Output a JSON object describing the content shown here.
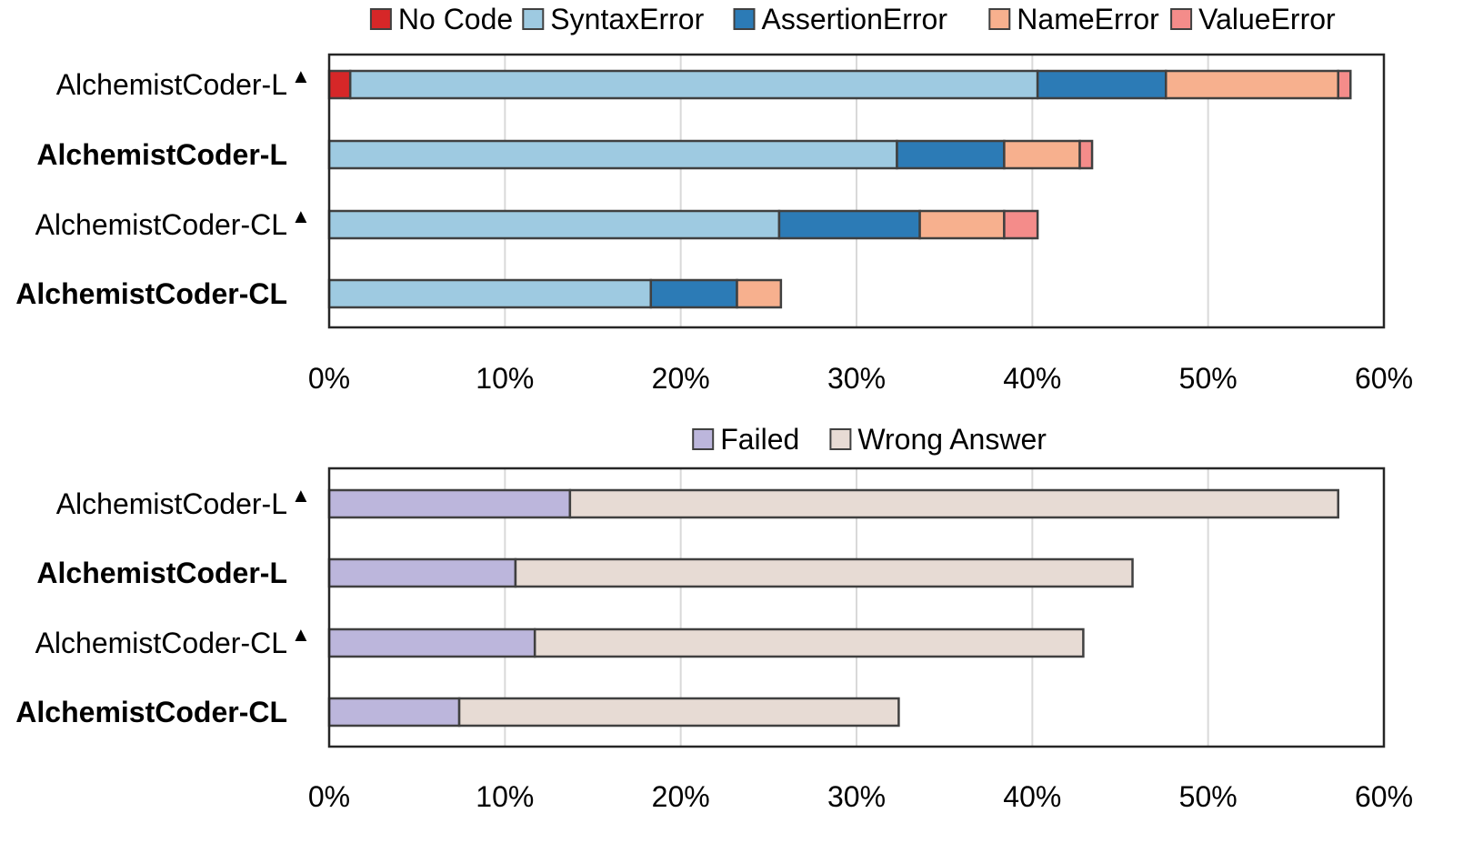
{
  "chart_data": [
    {
      "type": "bar",
      "orientation": "horizontal",
      "stacked": true,
      "categories": [
        "AlchemistCoder-L",
        "AlchemistCoder-L",
        "AlchemistCoder-CL",
        "AlchemistCoder-CL"
      ],
      "category_markers": [
        "▲",
        "",
        "▲",
        ""
      ],
      "category_bold": [
        false,
        true,
        false,
        true
      ],
      "series": [
        {
          "name": "No Code",
          "color": "#d62728",
          "values": [
            1.2,
            0,
            0,
            0
          ]
        },
        {
          "name": "SyntaxError",
          "color": "#9ecae1",
          "values": [
            39.1,
            32.3,
            25.6,
            18.3
          ]
        },
        {
          "name": "AssertionError",
          "color": "#2c7bb6",
          "values": [
            7.3,
            6.1,
            8.0,
            4.9
          ]
        },
        {
          "name": "NameError",
          "color": "#f7b08e",
          "values": [
            9.8,
            4.3,
            4.8,
            2.5
          ]
        },
        {
          "name": "ValueError",
          "color": "#f48c8a",
          "values": [
            0.7,
            0.7,
            1.9,
            0
          ]
        }
      ],
      "xlim": [
        0,
        60
      ],
      "xticks": [
        "0%",
        "10%",
        "20%",
        "30%",
        "40%",
        "50%",
        "60%"
      ],
      "grid": "vertical",
      "legend": "top"
    },
    {
      "type": "bar",
      "orientation": "horizontal",
      "stacked": true,
      "categories": [
        "AlchemistCoder-L",
        "AlchemistCoder-L",
        "AlchemistCoder-CL",
        "AlchemistCoder-CL"
      ],
      "category_markers": [
        "▲",
        "",
        "▲",
        ""
      ],
      "category_bold": [
        false,
        true,
        false,
        true
      ],
      "series": [
        {
          "name": "Failed",
          "color": "#bcb6dc",
          "values": [
            13.7,
            10.6,
            11.7,
            7.4
          ]
        },
        {
          "name": "Wrong Answer",
          "color": "#e7dbd4",
          "values": [
            43.7,
            35.1,
            31.2,
            25.0
          ]
        }
      ],
      "xlim": [
        0,
        60
      ],
      "xticks": [
        "0%",
        "10%",
        "20%",
        "30%",
        "40%",
        "50%",
        "60%"
      ],
      "grid": "vertical",
      "legend": "top"
    }
  ]
}
